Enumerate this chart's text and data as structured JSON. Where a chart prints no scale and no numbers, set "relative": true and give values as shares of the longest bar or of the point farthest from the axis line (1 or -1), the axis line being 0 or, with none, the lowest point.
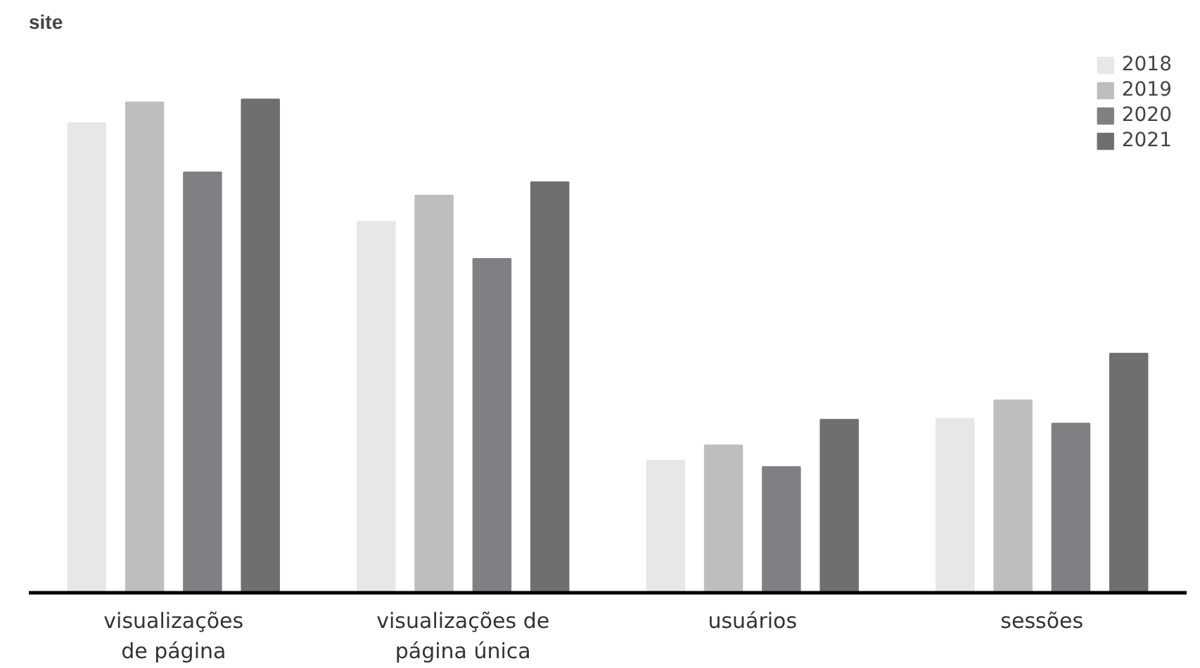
{
  "chart_data": {
    "type": "bar",
    "title": "site",
    "relative": true,
    "legend": "top right",
    "grid": false,
    "categories": [
      "visualizações\nde página",
      "visualizações de\npágina única",
      "usuários",
      "sessões"
    ],
    "series": [
      {
        "name": "2018",
        "color": "#e6e7e6",
        "values": [
          0.952,
          0.752,
          0.268,
          0.353
        ]
      },
      {
        "name": "2019",
        "color": "#bdbebd",
        "values": [
          0.994,
          0.805,
          0.299,
          0.39
        ]
      },
      {
        "name": "2020",
        "color": "#7f8083",
        "values": [
          0.852,
          0.677,
          0.255,
          0.343
        ]
      },
      {
        "name": "2021",
        "color": "#6f6f6f",
        "values": [
          1,
          0.832,
          0.351,
          0.485
        ]
      }
    ]
  }
}
